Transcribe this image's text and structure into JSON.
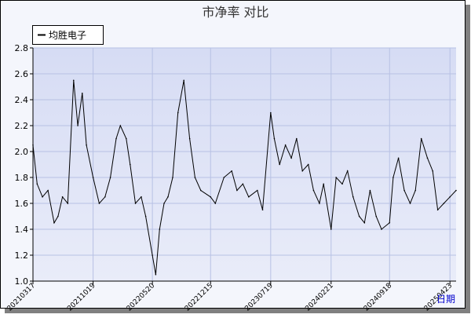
{
  "chart_data": {
    "type": "line",
    "title": "市净率 对比",
    "xlabel": "日期",
    "ylabel": "",
    "ylim": [
      1.0,
      2.8
    ],
    "yticks": [
      1.0,
      1.2,
      1.4,
      1.6,
      1.8,
      2.0,
      2.2,
      2.4,
      2.6,
      2.8
    ],
    "xticks": [
      "20210317",
      "20211019",
      "20220520",
      "20221215",
      "20230719",
      "20240221",
      "20240918",
      "20250423"
    ],
    "grid": true,
    "legend_position": "top-left",
    "series": [
      {
        "name": "均胜电子",
        "color": "#000000",
        "x": [
          "20210317",
          "20210401",
          "20210420",
          "20210510",
          "20210601",
          "20210615",
          "20210701",
          "20210720",
          "20210810",
          "20210825",
          "20210910",
          "20210925",
          "20211019",
          "20211110",
          "20211201",
          "20211220",
          "20220110",
          "20220125",
          "20220215",
          "20220301",
          "20220320",
          "20220410",
          "20220426",
          "20220520",
          "20220601",
          "20220615",
          "20220701",
          "20220715",
          "20220801",
          "20220820",
          "20220910",
          "20221001",
          "20221020",
          "20221110",
          "20221215",
          "20230101",
          "20230201",
          "20230301",
          "20230320",
          "20230410",
          "20230501",
          "20230601",
          "20230620",
          "20230719",
          "20230801",
          "20230820",
          "20230910",
          "20231001",
          "20231020",
          "20231110",
          "20231201",
          "20231220",
          "20240110",
          "20240125",
          "20240221",
          "20240310",
          "20240401",
          "20240420",
          "20240510",
          "20240601",
          "20240620",
          "20240710",
          "20240801",
          "20240820",
          "20240918",
          "20241001",
          "20241020",
          "20241110",
          "20241201",
          "20241220",
          "20250110",
          "20250201",
          "20250220",
          "20250310",
          "20250401",
          "20250423",
          "20250515"
        ],
        "values": [
          2.05,
          1.75,
          1.65,
          1.7,
          1.45,
          1.5,
          1.65,
          1.6,
          2.55,
          2.2,
          2.45,
          2.05,
          1.8,
          1.6,
          1.65,
          1.8,
          2.1,
          2.2,
          2.1,
          1.9,
          1.6,
          1.65,
          1.5,
          1.2,
          1.05,
          1.4,
          1.6,
          1.65,
          1.8,
          2.3,
          2.55,
          2.1,
          1.8,
          1.7,
          1.65,
          1.6,
          1.8,
          1.85,
          1.7,
          1.75,
          1.65,
          1.7,
          1.55,
          2.3,
          2.1,
          1.9,
          2.05,
          1.95,
          2.1,
          1.85,
          1.9,
          1.7,
          1.6,
          1.75,
          1.4,
          1.8,
          1.75,
          1.85,
          1.65,
          1.5,
          1.45,
          1.7,
          1.5,
          1.4,
          1.45,
          1.8,
          1.95,
          1.7,
          1.6,
          1.7,
          2.1,
          1.95,
          1.85,
          1.55,
          1.6,
          1.65,
          1.7
        ]
      }
    ]
  }
}
